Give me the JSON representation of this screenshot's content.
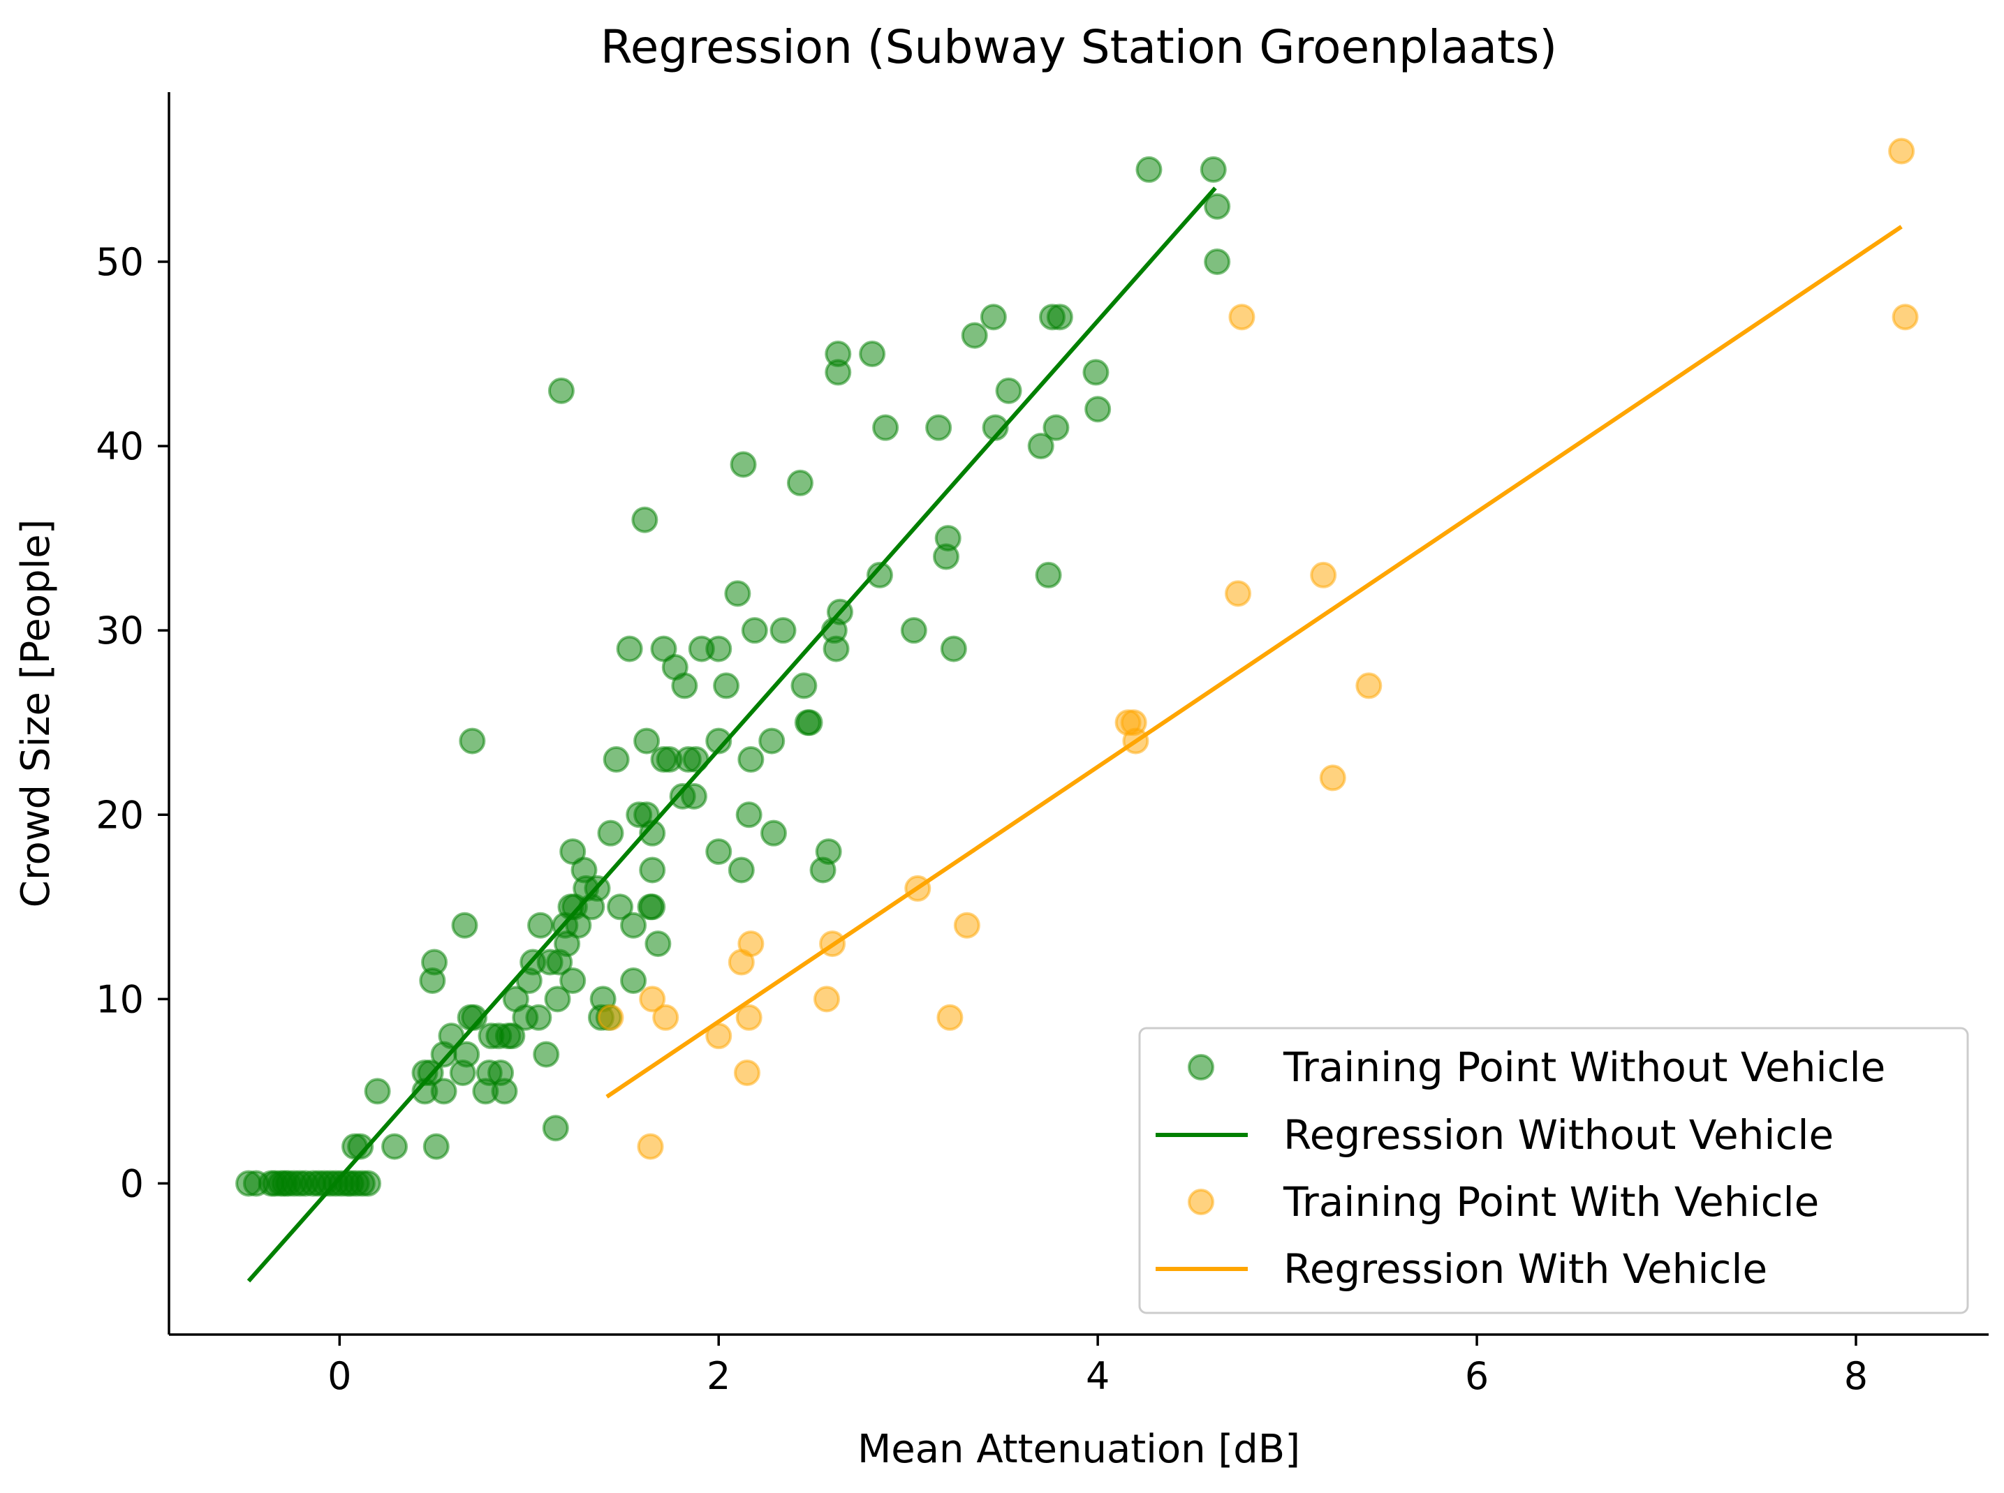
{
  "chart_data": {
    "type": "scatter",
    "title": "Regression (Subway Station Groenplaats)",
    "xlabel": "Mean Attenuation [dB]",
    "ylabel": "Crowd Size [People]",
    "xlim": [
      -0.9,
      8.7
    ],
    "ylim": [
      -8.2,
      59.2
    ],
    "xticks": [
      0,
      2,
      4,
      6,
      8
    ],
    "xtick_labels": [
      "0",
      "2",
      "4",
      "6",
      "8"
    ],
    "yticks": [
      0,
      10,
      20,
      30,
      40,
      50
    ],
    "ytick_labels": [
      "0",
      "10",
      "20",
      "30",
      "40",
      "50"
    ],
    "legend_position": "lower-right",
    "colors": {
      "without": "#008000",
      "with": "#ffa500"
    },
    "series": [
      {
        "name": "Training Point Without Vehicle",
        "kind": "scatter",
        "color": "#008000",
        "points": [
          [
            -0.48,
            0
          ],
          [
            -0.44,
            0
          ],
          [
            -0.36,
            0
          ],
          [
            -0.34,
            0
          ],
          [
            -0.31,
            0
          ],
          [
            -0.29,
            0
          ],
          [
            -0.27,
            0
          ],
          [
            -0.24,
            0
          ],
          [
            -0.21,
            0
          ],
          [
            -0.18,
            0
          ],
          [
            -0.14,
            0
          ],
          [
            -0.11,
            0
          ],
          [
            -0.08,
            0
          ],
          [
            -0.05,
            0
          ],
          [
            -0.02,
            0
          ],
          [
            0.01,
            0
          ],
          [
            0.04,
            0
          ],
          [
            0.06,
            0
          ],
          [
            0.09,
            0
          ],
          [
            0.12,
            0
          ],
          [
            0.15,
            0
          ],
          [
            0.08,
            2
          ],
          [
            0.11,
            2
          ],
          [
            0.29,
            2
          ],
          [
            0.51,
            2
          ],
          [
            0.2,
            5
          ],
          [
            1.14,
            3
          ],
          [
            0.45,
            5
          ],
          [
            0.45,
            6
          ],
          [
            0.48,
            6
          ],
          [
            0.55,
            5
          ],
          [
            0.55,
            7
          ],
          [
            0.59,
            8
          ],
          [
            0.65,
            6
          ],
          [
            0.67,
            7
          ],
          [
            0.69,
            9
          ],
          [
            0.71,
            9
          ],
          [
            0.77,
            5
          ],
          [
            0.79,
            6
          ],
          [
            0.8,
            8
          ],
          [
            0.84,
            8
          ],
          [
            0.85,
            6
          ],
          [
            0.87,
            5
          ],
          [
            0.89,
            8
          ],
          [
            0.91,
            8
          ],
          [
            0.93,
            10
          ],
          [
            0.98,
            9
          ],
          [
            1.05,
            9
          ],
          [
            1.09,
            7
          ],
          [
            0.49,
            11
          ],
          [
            0.5,
            12
          ],
          [
            0.66,
            14
          ],
          [
            1.0,
            11
          ],
          [
            1.02,
            12
          ],
          [
            1.06,
            14
          ],
          [
            1.11,
            12
          ],
          [
            1.15,
            10
          ],
          [
            1.16,
            12
          ],
          [
            1.19,
            14
          ],
          [
            1.2,
            13
          ],
          [
            1.22,
            15
          ],
          [
            1.23,
            11
          ],
          [
            1.24,
            15
          ],
          [
            1.26,
            14
          ],
          [
            1.3,
            16
          ],
          [
            1.33,
            15
          ],
          [
            1.36,
            16
          ],
          [
            1.38,
            9
          ],
          [
            1.39,
            10
          ],
          [
            1.42,
            9
          ],
          [
            1.43,
            19
          ],
          [
            1.48,
            15
          ],
          [
            1.23,
            18
          ],
          [
            1.29,
            17
          ],
          [
            1.46,
            23
          ],
          [
            1.53,
            29
          ],
          [
            1.55,
            14
          ],
          [
            1.55,
            11
          ],
          [
            1.58,
            20
          ],
          [
            1.62,
            20
          ],
          [
            1.62,
            24
          ],
          [
            1.64,
            15
          ],
          [
            1.65,
            19
          ],
          [
            1.65,
            17
          ],
          [
            1.65,
            15
          ],
          [
            1.68,
            13
          ],
          [
            1.71,
            23
          ],
          [
            1.71,
            29
          ],
          [
            1.74,
            23
          ],
          [
            1.77,
            28
          ],
          [
            1.81,
            21
          ],
          [
            1.82,
            27
          ],
          [
            1.84,
            23
          ],
          [
            1.87,
            21
          ],
          [
            1.88,
            23
          ],
          [
            1.91,
            29
          ],
          [
            2.0,
            24
          ],
          [
            2.0,
            29
          ],
          [
            2.0,
            18
          ],
          [
            2.04,
            27
          ],
          [
            2.1,
            32
          ],
          [
            2.12,
            17
          ],
          [
            2.13,
            39
          ],
          [
            2.16,
            20
          ],
          [
            2.17,
            23
          ],
          [
            2.19,
            30
          ],
          [
            2.28,
            24
          ],
          [
            2.29,
            19
          ],
          [
            2.34,
            30
          ],
          [
            2.43,
            38
          ],
          [
            2.45,
            27
          ],
          [
            2.47,
            25
          ],
          [
            2.48,
            25
          ],
          [
            2.55,
            17
          ],
          [
            2.58,
            18
          ],
          [
            2.61,
            30
          ],
          [
            2.62,
            29
          ],
          [
            2.63,
            44
          ],
          [
            2.63,
            45
          ],
          [
            2.64,
            31
          ],
          [
            2.81,
            45
          ],
          [
            2.85,
            33
          ],
          [
            2.88,
            41
          ],
          [
            3.03,
            30
          ],
          [
            3.16,
            41
          ],
          [
            3.2,
            34
          ],
          [
            3.21,
            35
          ],
          [
            3.24,
            29
          ],
          [
            3.35,
            46
          ],
          [
            3.45,
            47
          ],
          [
            3.46,
            41
          ],
          [
            3.53,
            43
          ],
          [
            3.7,
            40
          ],
          [
            3.74,
            33
          ],
          [
            3.76,
            47
          ],
          [
            3.78,
            41
          ],
          [
            3.8,
            47
          ],
          [
            3.99,
            44
          ],
          [
            4.0,
            42
          ],
          [
            1.17,
            43
          ],
          [
            1.61,
            36
          ],
          [
            0.7,
            24
          ],
          [
            4.27,
            55
          ],
          [
            4.61,
            55
          ],
          [
            4.63,
            53
          ],
          [
            4.63,
            50
          ]
        ]
      },
      {
        "name": "Regression Without Vehicle",
        "kind": "line",
        "color": "#008000",
        "points": [
          [
            -0.48,
            -5.3
          ],
          [
            4.62,
            54.0
          ]
        ]
      },
      {
        "name": "Training Point With Vehicle",
        "kind": "scatter",
        "color": "#ffa500",
        "points": [
          [
            1.43,
            9
          ],
          [
            1.64,
            2
          ],
          [
            1.65,
            10
          ],
          [
            1.72,
            9
          ],
          [
            2.0,
            8
          ],
          [
            2.12,
            12
          ],
          [
            2.15,
            6
          ],
          [
            2.16,
            9
          ],
          [
            2.17,
            13
          ],
          [
            2.57,
            10
          ],
          [
            2.6,
            13
          ],
          [
            3.05,
            16
          ],
          [
            3.22,
            9
          ],
          [
            3.31,
            14
          ],
          [
            4.16,
            25
          ],
          [
            4.19,
            25
          ],
          [
            4.2,
            24
          ],
          [
            4.74,
            32
          ],
          [
            4.76,
            47
          ],
          [
            5.19,
            33
          ],
          [
            5.24,
            22
          ],
          [
            5.43,
            27
          ],
          [
            8.24,
            56
          ],
          [
            8.26,
            47
          ]
        ]
      },
      {
        "name": "Regression With Vehicle",
        "kind": "line",
        "color": "#ffa500",
        "points": [
          [
            1.41,
            4.7
          ],
          [
            8.24,
            51.9
          ]
        ]
      }
    ]
  }
}
